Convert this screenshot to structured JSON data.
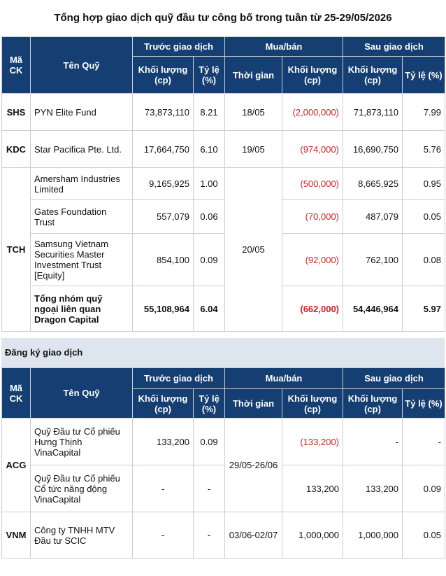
{
  "title": "Tổng hợp giao dịch quỹ đầu tư công bố trong tuần từ 25-29/05/2026",
  "headers": {
    "ma_ck": "Mã CK",
    "ten_quy": "Tên Quỹ",
    "truoc": "Trước giao dịch",
    "mua_ban": "Mua/bán",
    "sau": "Sau giao dịch",
    "khoi_luong": "Khối lượng (cp)",
    "ty_le": "Tỷ lệ (%)",
    "thoi_gian": "Thời gian",
    "ty_le_sau": "Tỷ lệ (%)"
  },
  "table1": {
    "shs": {
      "code": "SHS",
      "name": "PYN Elite Fund",
      "before_vol": "73,873,110",
      "before_pct": "8.21",
      "time": "18/05",
      "trade": "(2,000,000)",
      "after_vol": "71,873,110",
      "after_pct": "7.99"
    },
    "kdc": {
      "code": "KDC",
      "name": "Star Pacifica Pte. Ltd.",
      "before_vol": "17,664,750",
      "before_pct": "6.10",
      "time": "19/05",
      "trade": "(974,000)",
      "after_vol": "16,690,750",
      "after_pct": "5.76"
    },
    "tch": {
      "code": "TCH",
      "time": "20/05",
      "r1": {
        "name": "Amersham Industries Limited",
        "before_vol": "9,165,925",
        "before_pct": "1.00",
        "trade": "(500,000)",
        "after_vol": "8,665,925",
        "after_pct": "0.95"
      },
      "r2": {
        "name": "Gates Foundation Trust",
        "before_vol": "557,079",
        "before_pct": "0.06",
        "trade": "(70,000)",
        "after_vol": "487,079",
        "after_pct": "0.05"
      },
      "r3": {
        "name": "Samsung Vietnam Securities Master Investment Trust [Equity]",
        "before_vol": "854,100",
        "before_pct": "0.09",
        "trade": "(92,000)",
        "after_vol": "762,100",
        "after_pct": "0.08"
      },
      "total": {
        "name": "Tổng nhóm quỹ ngoại liên quan Dragon Capital",
        "before_vol": "55,108,964",
        "before_pct": "6.04",
        "trade": "(662,000)",
        "after_vol": "54,446,964",
        "after_pct": "5.97"
      }
    }
  },
  "section2_title": "Đăng ký giao dịch",
  "table2": {
    "acg": {
      "code": "ACG",
      "time": "29/05-26/06",
      "r1": {
        "name": "Quỹ Đầu tư Cổ phiếu Hưng Thịnh VinaCapital",
        "before_vol": "133,200",
        "before_pct": "0.09",
        "trade": "(133,200)",
        "after_vol": "-",
        "after_pct": "-"
      },
      "r2": {
        "name": "Quỹ Đầu tư Cổ phiếu Cổ tức năng động VinaCapital",
        "before_vol": "-",
        "before_pct": "-",
        "trade": "133,200",
        "after_vol": "133,200",
        "after_pct": "0.09"
      }
    },
    "vnm": {
      "code": "VNM",
      "name": "Công ty TNHH MTV Đầu tư SCIC",
      "before_vol": "-",
      "before_pct": "-",
      "time": "03/06-02/07",
      "trade": "1,000,000",
      "after_vol": "1,000,000",
      "after_pct": "0.05"
    }
  }
}
